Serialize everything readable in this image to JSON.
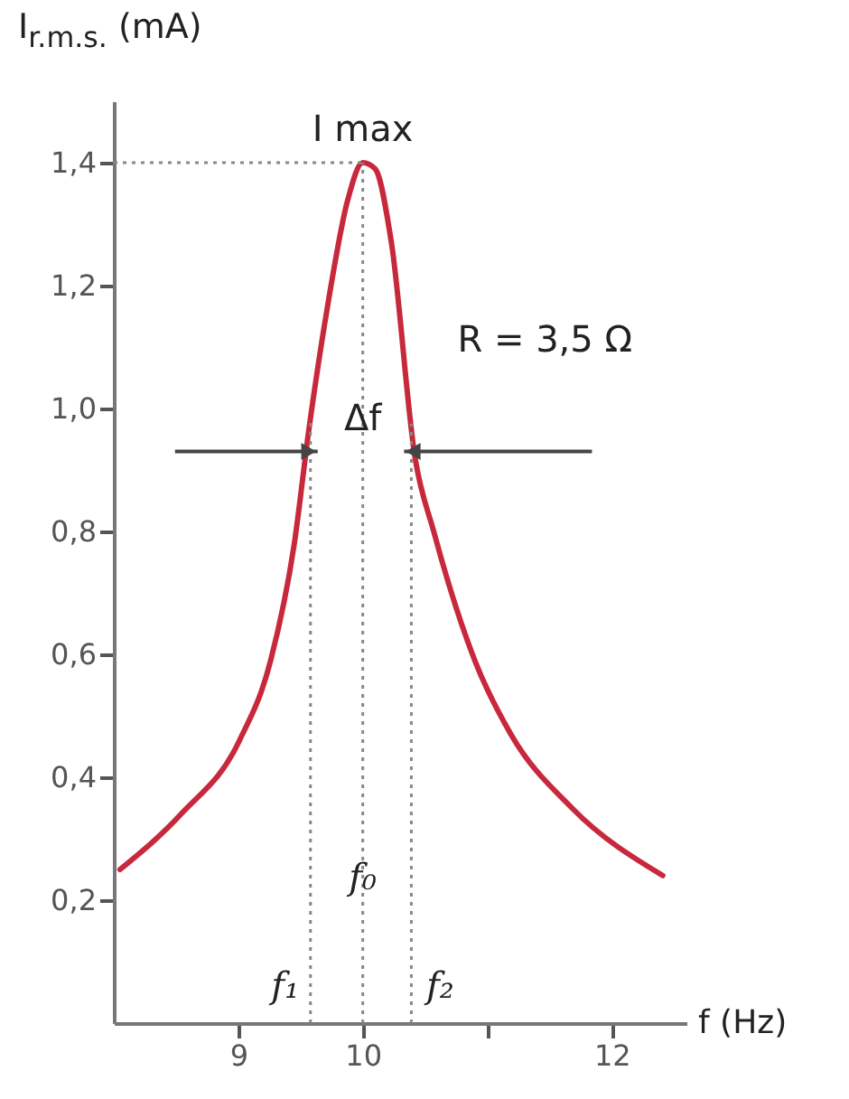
{
  "chart_data": {
    "type": "line",
    "ylabel": "I$_{r.m.s.}$ (mA)",
    "xlabel": "f (Hz)",
    "x": [
      8.05,
      8.54,
      9.01,
      9.26,
      9.45,
      9.57,
      9.72,
      9.88,
      10.0,
      10.1,
      10.23,
      10.42,
      10.57,
      10.9,
      11.19,
      11.68,
      12.41
    ],
    "series": [
      {
        "color": "#c8283c",
        "values": [
          0.25,
          0.34,
          0.46,
          0.59,
          0.78,
          0.97,
          1.17,
          1.34,
          1.4,
          1.39,
          1.27,
          0.92,
          0.8,
          0.59,
          0.47,
          0.35,
          0.24
        ]
      }
    ],
    "xlim": [
      8,
      12.6
    ],
    "xticks": [
      9,
      10,
      {
        "value": 11,
        "label": null
      },
      12
    ],
    "ylim": [
      0,
      1.5
    ],
    "yticks": [
      {
        "value": 0.2,
        "label": "0,2"
      },
      {
        "value": 0.4,
        "label": "0,4"
      },
      {
        "value": 0.6,
        "label": "0,6"
      },
      {
        "value": 0.8,
        "label": "0,8"
      },
      {
        "value": 1.0,
        "label": "1,0"
      },
      {
        "value": 1.2,
        "label": "1,2"
      },
      {
        "value": 1.4,
        "label": "1,4"
      }
    ],
    "ref_lines": [
      {
        "axis": "x",
        "value": 9.58,
        "label": "f₁",
        "line_style": "dotted",
        "color": "#888888"
      },
      {
        "axis": "x",
        "value": 10,
        "label": "f₀",
        "line_style": "dotted",
        "color": "#888888"
      },
      {
        "axis": "x",
        "value": 10.39,
        "label": "f₂",
        "line_style": "dotted",
        "color": "#888888"
      },
      {
        "axis": "y",
        "value": 1.4,
        "line_style": "dotted",
        "color": "#888888"
      }
    ],
    "annotations": [
      {
        "text": "I max",
        "x": 10,
        "y": 1.4
      },
      {
        "text": "Δf",
        "x": 10,
        "y": 0.93
      },
      "R = 3,5 Ω"
    ],
    "grid": false,
    "marker": "none",
    "line_style": "solid"
  }
}
